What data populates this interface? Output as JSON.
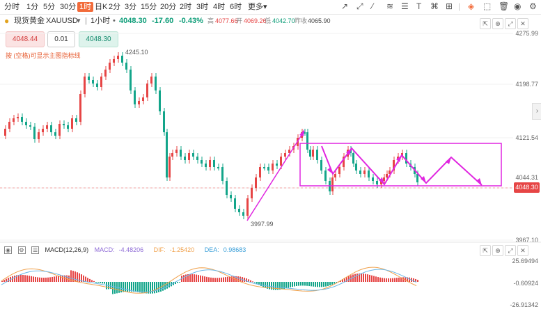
{
  "toolbar": {
    "timeframes": [
      "分时",
      "1分",
      "5分",
      "30分",
      "1时",
      "日K",
      "2分",
      "3分",
      "15分",
      "20分",
      "2时",
      "3时",
      "4时",
      "6时",
      "更多"
    ],
    "active_timeframe": "1时",
    "more_arrow": "▾",
    "icons": [
      "line-draw-icon",
      "cross-icon",
      "ray-icon",
      "parallel-line-icon",
      "fib-icon",
      "text-icon",
      "shape-icon",
      "measure-icon",
      "clear-icon",
      "layout-icon",
      "eye-icon",
      "settings-icon"
    ]
  },
  "symbol": {
    "name": "现货黄金",
    "code": "XAUUSD",
    "dropdown": "▾",
    "divider": "|",
    "interval": "1小时",
    "price": "4048.30",
    "change": "-17.60",
    "change_pct": "-0.43%",
    "high_label": "高",
    "high": "4077.66",
    "open_label": "开",
    "open": "4069.26",
    "low_label": "低",
    "low": "4042.70",
    "prev_close_label": "昨收",
    "prev_close": "4065.90"
  },
  "order": {
    "bid": "4048.44",
    "lot": "0.01",
    "ask": "4048.30"
  },
  "hint_text": "按 (空格)可显示主图指标线",
  "price_axis": [
    "4275.99",
    "4198.77",
    "4121.54",
    "4044.31",
    "3967.10"
  ],
  "last_price_tag": "4048.30",
  "annotations": {
    "high_marker": "4245.10",
    "low_marker": "3997.99"
  },
  "macd": {
    "label": "MACD(12,26,9)",
    "macd_label": "MACD:",
    "macd_value": "-4.48206",
    "dif_label": "DIF:",
    "dif_value": "-1.25420",
    "dea_label": "DEA:",
    "dea_value": "0.98683",
    "axis": [
      "25.69494",
      "-0.60924",
      "-26.91342"
    ]
  },
  "colors": {
    "up": "#e64545",
    "down": "#13a58a",
    "accent": "#f26b3a",
    "projection": "#e026e0",
    "dif": "#f0a04a",
    "dea": "#6bb7e6",
    "macd_text": "#8f6cd6"
  }
}
